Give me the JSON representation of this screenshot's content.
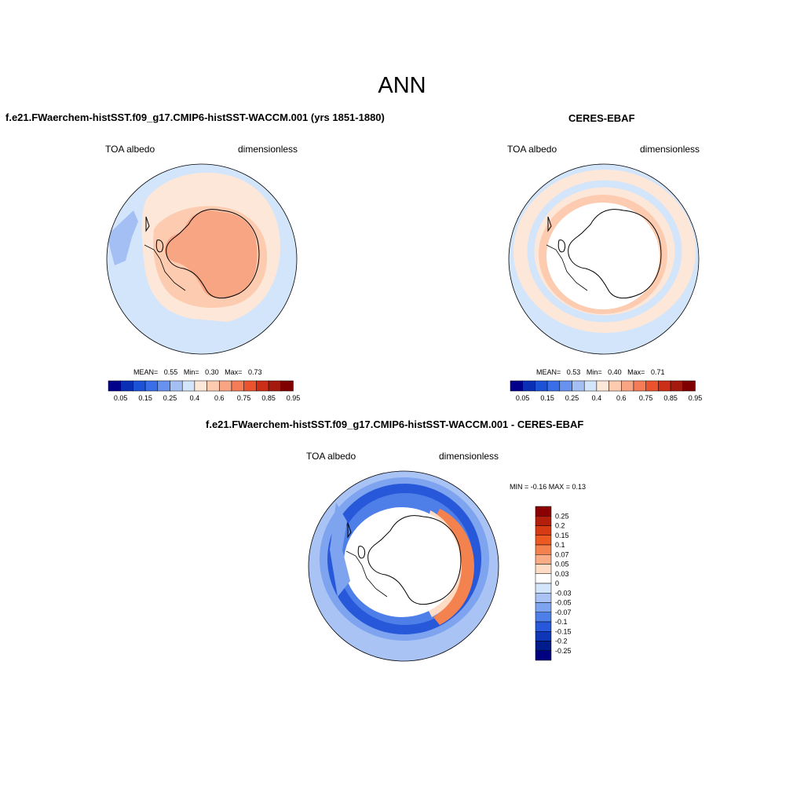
{
  "main_title": "ANN",
  "panels": [
    {
      "title": "f.e21.FWaerchem-histSST.f09_g17.CMIP6-histSST-WACCM.001 (yrs 1851-1880)",
      "variable": "TOA albedo",
      "units": "dimensionless",
      "stats": {
        "mean_label": "MEAN=",
        "mean": "0.55",
        "min_label": "Min=",
        "min": "0.30",
        "max_label": "Max=",
        "max": "0.73"
      },
      "colorbar_labels": [
        "0.05",
        "0.15",
        "0.25",
        "0.4",
        "0.6",
        "0.75",
        "0.85",
        "0.95"
      ]
    },
    {
      "title": "CERES-EBAF",
      "variable": "TOA albedo",
      "units": "dimensionless",
      "stats": {
        "mean_label": "MEAN=",
        "mean": "0.53",
        "min_label": "Min=",
        "min": "0.40",
        "max_label": "Max=",
        "max": "0.71"
      },
      "colorbar_labels": [
        "0.05",
        "0.15",
        "0.25",
        "0.4",
        "0.6",
        "0.75",
        "0.85",
        "0.95"
      ]
    },
    {
      "title": "f.e21.FWaerchem-histSST.f09_g17.CMIP6-histSST-WACCM.001 - CERES-EBAF",
      "variable": "TOA albedo",
      "units": "dimensionless",
      "stats_text": "MIN =  -0.16 MAX =   0.13",
      "colorbar_labels": [
        "0.25",
        "0.2",
        "0.15",
        "0.1",
        "0.07",
        "0.05",
        "0.03",
        "0",
        "-0.03",
        "-0.05",
        "-0.07",
        "-0.1",
        "-0.15",
        "-0.2",
        "-0.25"
      ]
    }
  ],
  "colors": {
    "field_scale": [
      "#00008b",
      "#0a2fb5",
      "#1c52d6",
      "#3a6ee8",
      "#6792ee",
      "#a4bff4",
      "#d3e5fa",
      "#fde7d8",
      "#fccbb0",
      "#f8a584",
      "#f47d58",
      "#e9542f",
      "#cc2f18",
      "#a51a0e",
      "#800000"
    ],
    "diff_scale": [
      "#8b0000",
      "#b41e0c",
      "#d63b14",
      "#ec5a24",
      "#f4824e",
      "#f9ac86",
      "#fddbc4",
      "#ffffff",
      "#d3e5fa",
      "#a9c3f5",
      "#7ea4f0",
      "#4e7fe8",
      "#2658d9",
      "#0f36b6",
      "#001b8c",
      "#000080"
    ],
    "ocean_low": "#d3e5fa",
    "land_high": "#f8a584"
  }
}
